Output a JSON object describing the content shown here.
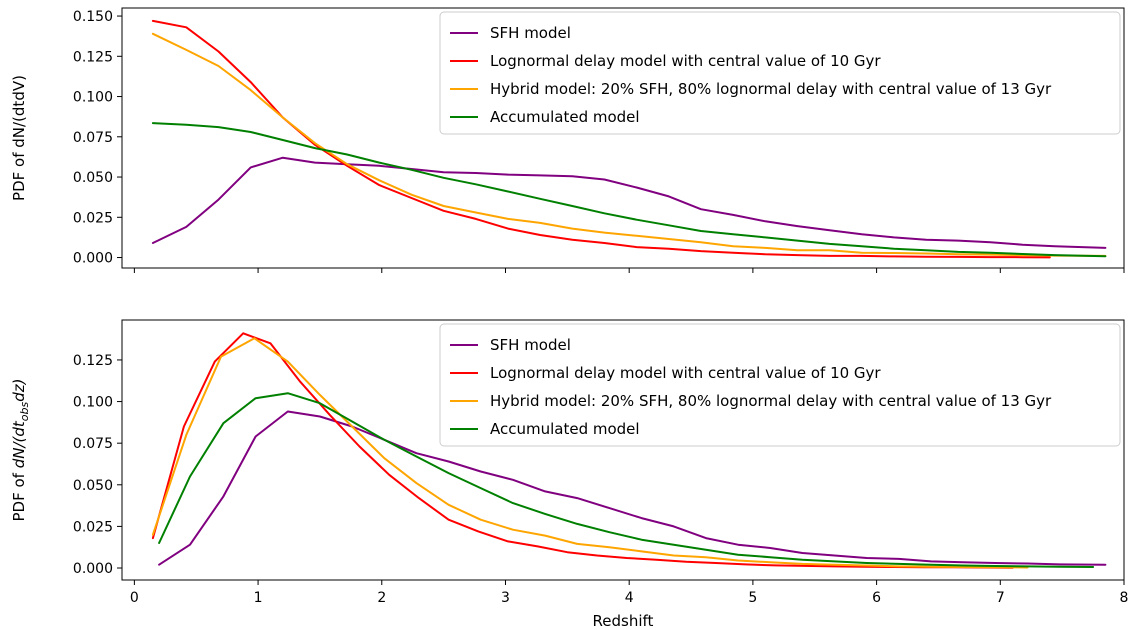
{
  "colors": {
    "SFH": "#800080",
    "Lognormal": "#ff0000",
    "Hybrid": "#ffa500",
    "Accumulated": "#008000"
  },
  "chart_data": [
    {
      "type": "line",
      "ylabel": "PDF of dN/(dtdV)",
      "xlabel": "",
      "xlim": [
        -0.1,
        8.0
      ],
      "ylim": [
        -0.0065,
        0.155
      ],
      "xticks": [
        "0",
        "1",
        "2",
        "3",
        "4",
        "5",
        "6",
        "7",
        "8"
      ],
      "xtick_labels_shown": false,
      "yticks": [
        "0.000",
        "0.025",
        "0.050",
        "0.075",
        "0.100",
        "0.125",
        "0.150"
      ],
      "legend_position": "top-right",
      "series": [
        {
          "name": "SFH model",
          "color_key": "SFH",
          "x": [
            0.15,
            0.42,
            0.68,
            0.94,
            1.2,
            1.46,
            1.72,
            1.98,
            2.24,
            2.5,
            2.76,
            3.02,
            3.28,
            3.54,
            3.8,
            4.06,
            4.32,
            4.58,
            4.84,
            5.1,
            5.36,
            5.62,
            5.88,
            6.14,
            6.4,
            6.66,
            6.92,
            7.18,
            7.44,
            7.85
          ],
          "y": [
            0.009,
            0.019,
            0.036,
            0.056,
            0.062,
            0.059,
            0.058,
            0.057,
            0.055,
            0.053,
            0.0525,
            0.0515,
            0.051,
            0.0505,
            0.0485,
            0.0435,
            0.038,
            0.03,
            0.0265,
            0.0225,
            0.0195,
            0.017,
            0.0145,
            0.0125,
            0.011,
            0.0105,
            0.0095,
            0.008,
            0.007,
            0.006
          ]
        },
        {
          "name": "Lognormal delay model with central value of 10 Gyr",
          "color_key": "Lognormal",
          "x": [
            0.15,
            0.42,
            0.68,
            0.94,
            1.2,
            1.46,
            1.72,
            1.98,
            2.24,
            2.5,
            2.76,
            3.02,
            3.28,
            3.54,
            3.8,
            4.06,
            4.32,
            4.58,
            4.84,
            5.1,
            5.36,
            5.62,
            5.88,
            6.14,
            6.4,
            6.66,
            6.92,
            7.18,
            7.4
          ],
          "y": [
            0.147,
            0.143,
            0.128,
            0.109,
            0.087,
            0.07,
            0.057,
            0.045,
            0.037,
            0.029,
            0.024,
            0.018,
            0.014,
            0.011,
            0.009,
            0.0065,
            0.0055,
            0.004,
            0.003,
            0.002,
            0.0015,
            0.001,
            0.001,
            0.0007,
            0.0005,
            0.0004,
            0.0003,
            0.0002,
            0.0001
          ]
        },
        {
          "name": "Hybrid model: 20% SFH, 80% lognormal delay with central value of 13 Gyr",
          "color_key": "Hybrid",
          "x": [
            0.15,
            0.42,
            0.68,
            0.94,
            1.2,
            1.46,
            1.72,
            1.98,
            2.24,
            2.5,
            2.76,
            3.02,
            3.28,
            3.54,
            3.8,
            4.06,
            4.32,
            4.58,
            4.84,
            5.1,
            5.36,
            5.62,
            5.88,
            6.14,
            6.4,
            6.66,
            6.92,
            7.18,
            7.44,
            7.85
          ],
          "y": [
            0.139,
            0.129,
            0.119,
            0.104,
            0.087,
            0.071,
            0.058,
            0.048,
            0.039,
            0.032,
            0.028,
            0.024,
            0.0215,
            0.018,
            0.0155,
            0.0135,
            0.0115,
            0.0095,
            0.007,
            0.006,
            0.0045,
            0.0045,
            0.003,
            0.0028,
            0.0025,
            0.002,
            0.0018,
            0.0015,
            0.0012,
            0.001
          ]
        },
        {
          "name": "Accumulated model",
          "color_key": "Accumulated",
          "x": [
            0.15,
            0.42,
            0.68,
            0.94,
            1.2,
            1.46,
            1.72,
            1.98,
            2.24,
            2.5,
            2.76,
            3.02,
            3.28,
            3.54,
            3.8,
            4.06,
            4.32,
            4.58,
            4.84,
            5.1,
            5.36,
            5.62,
            5.88,
            6.14,
            6.4,
            6.66,
            6.92,
            7.18,
            7.44,
            7.85
          ],
          "y": [
            0.0835,
            0.0825,
            0.081,
            0.078,
            0.073,
            0.068,
            0.064,
            0.059,
            0.0545,
            0.0495,
            0.0455,
            0.041,
            0.0365,
            0.032,
            0.0275,
            0.0235,
            0.02,
            0.0165,
            0.0145,
            0.0125,
            0.0105,
            0.0085,
            0.007,
            0.0055,
            0.0045,
            0.0035,
            0.003,
            0.0022,
            0.0015,
            0.0008
          ]
        }
      ]
    },
    {
      "type": "line",
      "ylabel": "PDF of dN/(dt_obs dz)",
      "ylabel_parts": {
        "prefix": "PDF of ",
        "before_sub": "dN/(dt",
        "sub": "obs",
        "after_sub": "dz)"
      },
      "xlabel": "Redshift",
      "xlim": [
        -0.1,
        8.0
      ],
      "ylim": [
        -0.0072,
        0.149
      ],
      "xticks": [
        "0",
        "1",
        "2",
        "3",
        "4",
        "5",
        "6",
        "7",
        "8"
      ],
      "xtick_labels_shown": true,
      "yticks": [
        "0.000",
        "0.025",
        "0.050",
        "0.075",
        "0.100",
        "0.125"
      ],
      "legend_position": "top-right",
      "series": [
        {
          "name": "SFH model",
          "color_key": "SFH",
          "x": [
            0.2,
            0.45,
            0.72,
            0.98,
            1.24,
            1.5,
            1.76,
            2.02,
            2.28,
            2.54,
            2.8,
            3.06,
            3.32,
            3.58,
            3.84,
            4.1,
            4.36,
            4.62,
            4.88,
            5.14,
            5.4,
            5.66,
            5.92,
            6.18,
            6.44,
            6.7,
            6.96,
            7.22,
            7.48,
            7.85
          ],
          "y": [
            0.002,
            0.014,
            0.043,
            0.079,
            0.094,
            0.091,
            0.085,
            0.077,
            0.069,
            0.064,
            0.058,
            0.053,
            0.046,
            0.042,
            0.036,
            0.03,
            0.025,
            0.018,
            0.014,
            0.012,
            0.009,
            0.0075,
            0.006,
            0.0055,
            0.004,
            0.0035,
            0.003,
            0.0027,
            0.0022,
            0.002
          ]
        },
        {
          "name": "Lognormal delay model with central value of 10 Gyr",
          "color_key": "Lognormal",
          "x": [
            0.15,
            0.4,
            0.65,
            0.88,
            1.1,
            1.34,
            1.58,
            1.82,
            2.06,
            2.3,
            2.54,
            2.78,
            3.02,
            3.26,
            3.5,
            3.74,
            3.98,
            4.22,
            4.46,
            4.7,
            4.94,
            5.18,
            5.42,
            5.66,
            5.9,
            6.14,
            6.38,
            6.62,
            6.86,
            7.1
          ],
          "y": [
            0.018,
            0.085,
            0.124,
            0.141,
            0.135,
            0.112,
            0.092,
            0.073,
            0.056,
            0.042,
            0.029,
            0.022,
            0.016,
            0.013,
            0.0095,
            0.0075,
            0.006,
            0.005,
            0.0038,
            0.003,
            0.0022,
            0.0016,
            0.0013,
            0.001,
            0.0008,
            0.0006,
            0.0005,
            0.0004,
            0.0003,
            0.0002
          ]
        },
        {
          "name": "Hybrid model: 20% SFH, 80% lognormal delay with central value of 13 Gyr",
          "color_key": "Hybrid",
          "x": [
            0.15,
            0.42,
            0.7,
            0.97,
            1.24,
            1.5,
            1.76,
            2.02,
            2.28,
            2.54,
            2.8,
            3.06,
            3.32,
            3.58,
            3.84,
            4.1,
            4.36,
            4.62,
            4.88,
            5.14,
            5.4,
            5.66,
            5.92,
            6.18,
            6.44,
            6.7,
            6.96,
            7.22
          ],
          "y": [
            0.02,
            0.08,
            0.127,
            0.138,
            0.124,
            0.104,
            0.085,
            0.066,
            0.051,
            0.038,
            0.029,
            0.023,
            0.0195,
            0.0145,
            0.0125,
            0.01,
            0.0075,
            0.0065,
            0.0045,
            0.0035,
            0.0025,
            0.002,
            0.0015,
            0.001,
            0.0008,
            0.0006,
            0.0004,
            0.0003
          ]
        },
        {
          "name": "Accumulated model",
          "color_key": "Accumulated",
          "x": [
            0.2,
            0.45,
            0.72,
            0.98,
            1.24,
            1.5,
            1.76,
            2.02,
            2.28,
            2.54,
            2.8,
            3.06,
            3.32,
            3.58,
            3.84,
            4.1,
            4.36,
            4.62,
            4.88,
            5.14,
            5.4,
            5.66,
            5.92,
            6.18,
            6.44,
            6.7,
            6.96,
            7.22,
            7.48,
            7.75
          ],
          "y": [
            0.015,
            0.055,
            0.087,
            0.102,
            0.105,
            0.099,
            0.088,
            0.077,
            0.067,
            0.057,
            0.048,
            0.039,
            0.0325,
            0.0265,
            0.0215,
            0.017,
            0.014,
            0.011,
            0.008,
            0.0065,
            0.005,
            0.004,
            0.003,
            0.0025,
            0.002,
            0.0015,
            0.0012,
            0.001,
            0.0008,
            0.0006
          ]
        }
      ]
    }
  ]
}
